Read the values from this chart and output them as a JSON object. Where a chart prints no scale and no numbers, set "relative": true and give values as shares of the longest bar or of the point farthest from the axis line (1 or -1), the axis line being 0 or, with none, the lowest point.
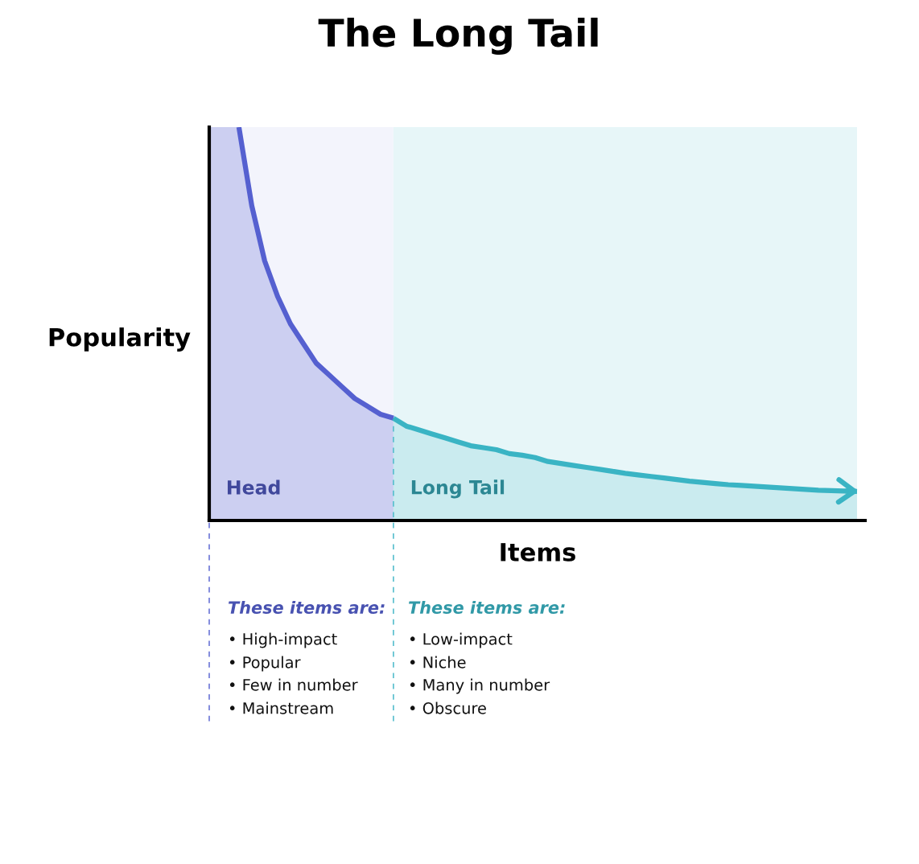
{
  "chart_data": {
    "type": "area",
    "title": "The Long Tail",
    "xlabel": "Items",
    "ylabel": "Popularity",
    "relative": true,
    "categories": [
      null,
      null,
      null,
      null,
      null,
      null,
      null,
      null,
      null,
      null,
      null,
      null,
      null,
      null,
      null,
      null,
      null,
      null,
      null,
      null,
      null,
      null,
      null,
      null,
      null,
      null,
      null,
      null,
      null,
      null,
      null,
      null,
      null,
      null,
      null,
      null,
      null,
      null,
      null,
      null,
      null,
      null,
      null,
      null,
      null,
      null,
      null,
      null,
      null
    ],
    "series": [
      {
        "name": "Head",
        "color": "#5560d0",
        "values": [
          1.0,
          0.8,
          0.66,
          0.57,
          0.5,
          0.45,
          0.4,
          0.37,
          0.34,
          0.31,
          0.29,
          0.27,
          0.26,
          null,
          null,
          null,
          null,
          null,
          null,
          null,
          null,
          null,
          null,
          null,
          null,
          null,
          null,
          null,
          null,
          null,
          null,
          null,
          null,
          null,
          null,
          null,
          null,
          null,
          null,
          null,
          null,
          null,
          null,
          null,
          null,
          null,
          null,
          null,
          null
        ]
      },
      {
        "name": "Long Tail",
        "color": "#3ab4c4",
        "values": [
          null,
          null,
          null,
          null,
          null,
          null,
          null,
          null,
          null,
          null,
          null,
          null,
          0.26,
          0.24,
          0.23,
          0.22,
          0.21,
          0.2,
          0.19,
          0.185,
          0.18,
          0.17,
          0.166,
          0.16,
          0.15,
          0.145,
          0.14,
          0.135,
          0.13,
          0.125,
          0.12,
          0.116,
          0.112,
          0.108,
          0.104,
          0.1,
          0.097,
          0.094,
          0.091,
          0.089,
          0.087,
          0.085,
          0.083,
          0.081,
          0.079,
          0.077,
          0.076,
          0.075,
          0.074
        ]
      }
    ],
    "annotations": [
      "These items are:",
      "• High-impact",
      "• Popular",
      "• Few in number",
      "• Mainstream",
      "These items are:",
      "• Low-impact",
      "• Niche",
      "• Many in number",
      "• Obscure"
    ]
  }
}
